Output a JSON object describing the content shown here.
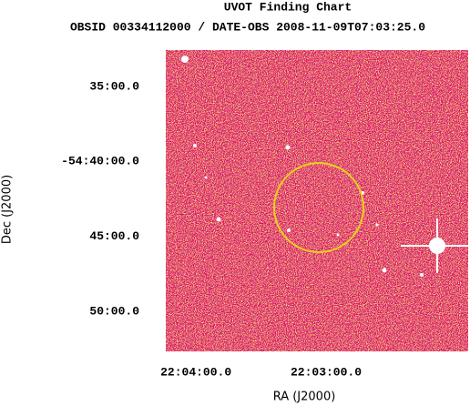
{
  "chart_data": {
    "type": "image",
    "title": "UVOT Finding Chart",
    "subtitle": "OBSID 00334112000 / DATE-OBS 2008-11-09T07:03:25.0",
    "x_label": "RA (J2000)",
    "y_label": "Dec (J2000)",
    "xlim": [
      331.058,
      330.477
    ],
    "ylim": [
      -54.878,
      -54.543
    ],
    "xticks": [
      {
        "value": 331.0,
        "label": "22:04:00.0"
      },
      {
        "value": 330.75,
        "label": "22:03:00.0"
      }
    ],
    "yticks": [
      {
        "value": -54.5833,
        "label": "35:00.0"
      },
      {
        "value": -54.6667,
        "label": "-54:40:00.0"
      },
      {
        "value": -54.75,
        "label": "45:00.0"
      },
      {
        "value": -54.8333,
        "label": "50:00.0"
      }
    ]
  }
}
